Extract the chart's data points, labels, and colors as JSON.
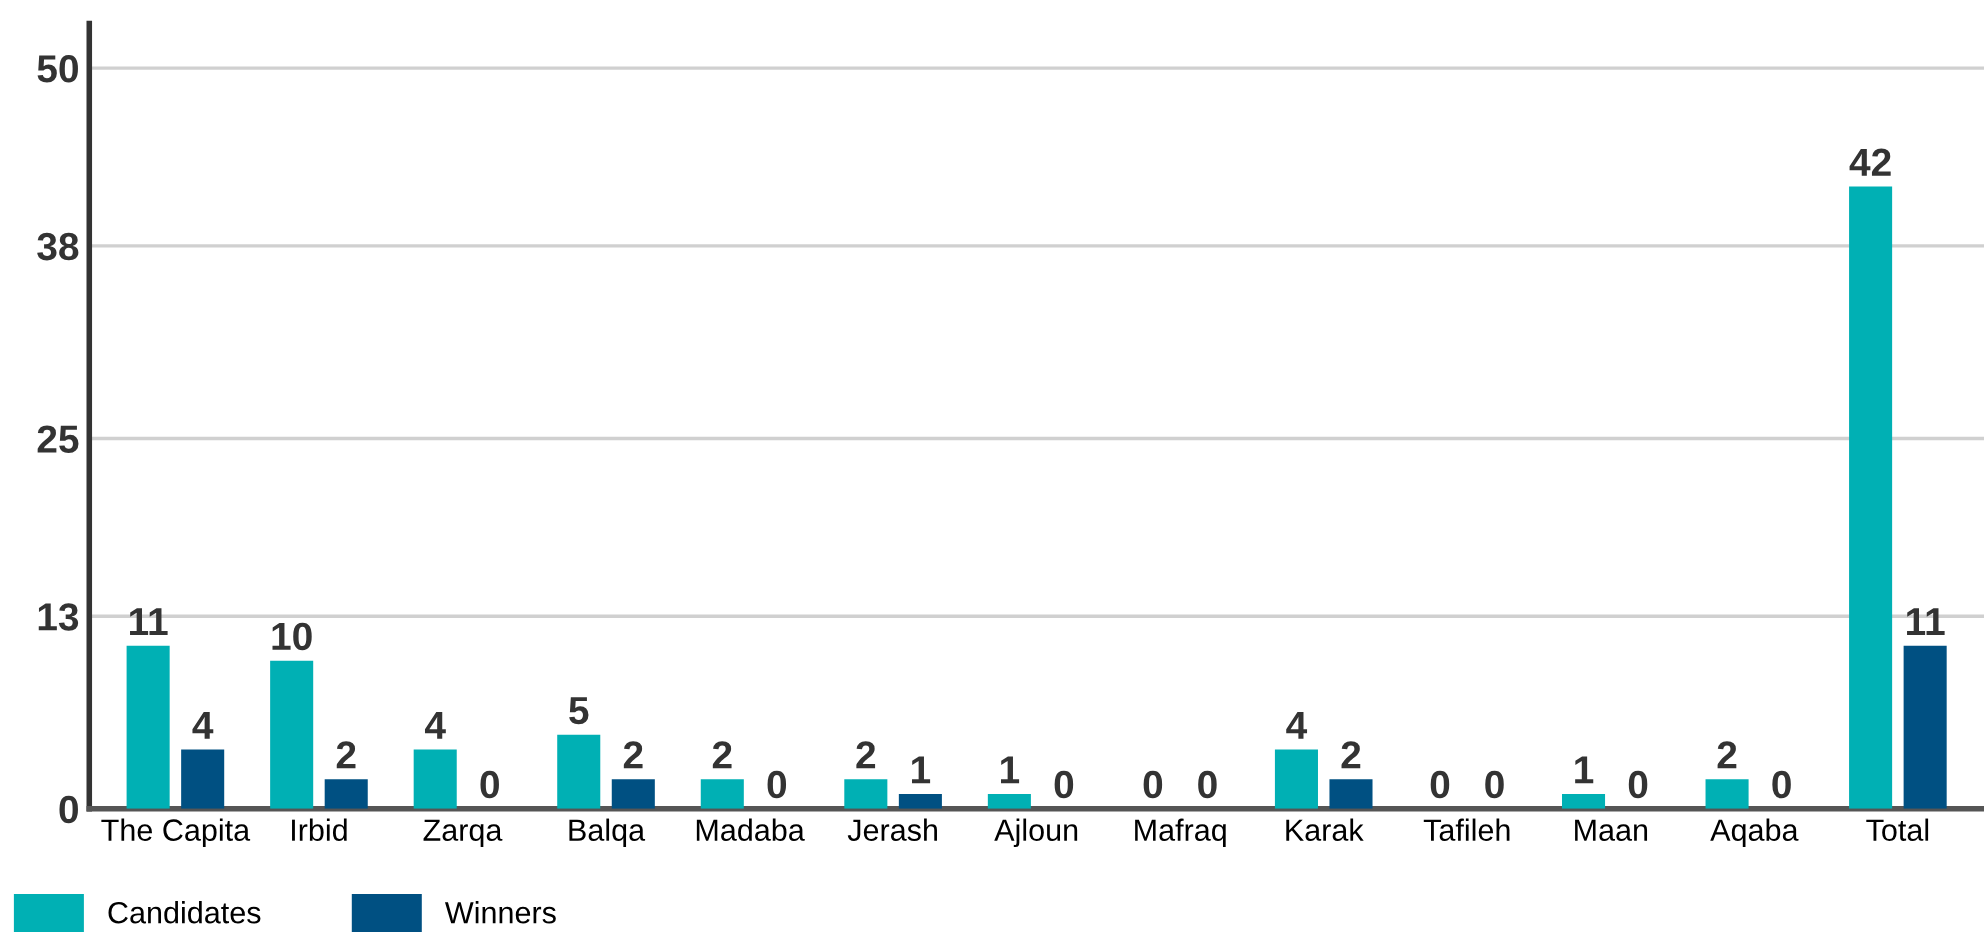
{
  "chart_data": {
    "type": "bar",
    "categories": [
      "The Capita",
      "Irbid",
      "Zarqa",
      "Balqa",
      "Madaba",
      "Jerash",
      "Ajloun",
      "Mafraq",
      "Karak",
      "Tafileh",
      "Maan",
      "Aqaba",
      "Total"
    ],
    "series": [
      {
        "name": "Candidates",
        "color": "#00b0b4",
        "values": [
          11,
          10,
          4,
          5,
          2,
          2,
          1,
          0,
          4,
          0,
          1,
          2,
          42
        ]
      },
      {
        "name": "Winners",
        "color": "#005082",
        "values": [
          4,
          2,
          0,
          2,
          0,
          1,
          0,
          0,
          2,
          0,
          0,
          0,
          11
        ]
      }
    ],
    "ylim": [
      0,
      53
    ],
    "yticks": [
      0,
      13,
      25,
      38,
      50
    ],
    "grid": "y",
    "legend": "bottom left",
    "data_labels": true
  }
}
